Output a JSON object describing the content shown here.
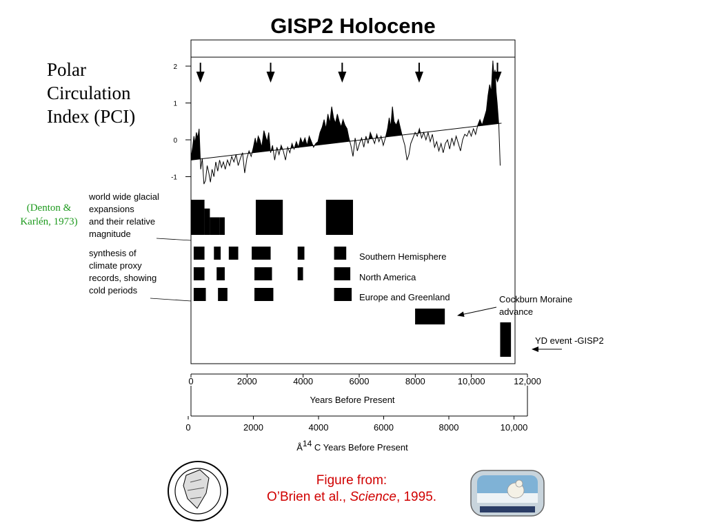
{
  "title": "GISP2 Holocene",
  "pci_label": [
    "Polar",
    "Circulation",
    "Index (PCI)"
  ],
  "denton_citation": [
    "(Denton &",
    "Karlén, 1973)"
  ],
  "glacial_description": [
    "world wide glacial",
    "expansions",
    "and their relative",
    "magnitude"
  ],
  "proxy_description": [
    "synthesis of",
    "climate proxy",
    "records, showing",
    "cold periods"
  ],
  "row_labels": {
    "southern_hemisphere": "Southern Hemisphere",
    "north_america": "North America",
    "europe_greenland": "Europe and Greenland"
  },
  "cockburn_label": [
    "Cockburn Moraine",
    "advance"
  ],
  "yd_label": "YD event -GISP2",
  "credit": {
    "line1": "Figure from:",
    "authors": "O’Brien et al., ",
    "journal": "Science",
    "year": ", 1995."
  },
  "colors": {
    "credit": "#d00000",
    "citation": "#1e9a1e",
    "marks": "#000000"
  },
  "chart_data": {
    "type": "area",
    "title": "GISP2 Holocene",
    "ylabel": "Polar Circulation Index (PCI)",
    "ylim": [
      -1.4,
      2.3
    ],
    "y_ticks": [
      "2",
      "1",
      "0",
      "-1"
    ],
    "xlim": [
      0,
      12000
    ],
    "x_ticks": [
      "0",
      "2000",
      "4000",
      "6000",
      "8000",
      "10,000",
      "12,000"
    ],
    "xlabel": "Years Before Present",
    "x2_ticks": [
      "0",
      "2000",
      "4000",
      "6000",
      "8000",
      "10,000"
    ],
    "x2label_prefix": "Å",
    "x2label_sup": "14",
    "x2label_rest": " C Years Before Present",
    "trend_line": {
      "x": [
        0,
        11500
      ],
      "y": [
        -0.55,
        0.45
      ]
    },
    "pci_series": [
      [
        0,
        -0.5
      ],
      [
        60,
        -0.2
      ],
      [
        110,
        0.1
      ],
      [
        150,
        -0.1
      ],
      [
        200,
        0.2
      ],
      [
        250,
        0.05
      ],
      [
        300,
        0.3
      ],
      [
        360,
        -0.8
      ],
      [
        420,
        -0.5
      ],
      [
        480,
        -1.2
      ],
      [
        540,
        -1.1
      ],
      [
        600,
        -0.7
      ],
      [
        660,
        -0.9
      ],
      [
        720,
        -1.15
      ],
      [
        780,
        -0.8
      ],
      [
        850,
        -1.0
      ],
      [
        920,
        -0.6
      ],
      [
        990,
        -0.85
      ],
      [
        1060,
        -0.55
      ],
      [
        1130,
        -0.75
      ],
      [
        1200,
        -0.6
      ],
      [
        1270,
        -0.8
      ],
      [
        1350,
        -0.55
      ],
      [
        1430,
        -0.7
      ],
      [
        1510,
        -0.45
      ],
      [
        1590,
        -0.6
      ],
      [
        1670,
        -0.4
      ],
      [
        1750,
        -0.7
      ],
      [
        1830,
        -0.5
      ],
      [
        1910,
        -0.35
      ],
      [
        1990,
        -0.9
      ],
      [
        2070,
        -0.5
      ],
      [
        2150,
        -0.3
      ],
      [
        2230,
        -0.45
      ],
      [
        2310,
        -0.2
      ],
      [
        2380,
        0.05
      ],
      [
        2430,
        -0.15
      ],
      [
        2490,
        0.1
      ],
      [
        2550,
        0.0
      ],
      [
        2620,
        -0.2
      ],
      [
        2700,
        0.25
      ],
      [
        2760,
        0.1
      ],
      [
        2820,
        -0.05
      ],
      [
        2880,
        0.2
      ],
      [
        2950,
        -0.35
      ],
      [
        3020,
        -0.15
      ],
      [
        3100,
        -0.55
      ],
      [
        3180,
        -0.2
      ],
      [
        3260,
        -0.4
      ],
      [
        3340,
        -0.15
      ],
      [
        3420,
        -0.3
      ],
      [
        3500,
        -0.55
      ],
      [
        3580,
        -0.2
      ],
      [
        3660,
        -0.35
      ],
      [
        3740,
        -0.1
      ],
      [
        3820,
        -0.25
      ],
      [
        3900,
        -0.05
      ],
      [
        3980,
        -0.2
      ],
      [
        4060,
        0.05
      ],
      [
        4140,
        -0.1
      ],
      [
        4220,
        0.05
      ],
      [
        4300,
        -0.15
      ],
      [
        4380,
        0.1
      ],
      [
        4460,
        -0.05
      ],
      [
        4540,
        -0.2
      ],
      [
        4620,
        -0.1
      ],
      [
        4700,
        -0.05
      ],
      [
        4780,
        0.2
      ],
      [
        4860,
        0.35
      ],
      [
        4930,
        0.55
      ],
      [
        5000,
        0.3
      ],
      [
        5070,
        0.7
      ],
      [
        5140,
        0.45
      ],
      [
        5210,
        0.9
      ],
      [
        5280,
        0.6
      ],
      [
        5350,
        0.45
      ],
      [
        5420,
        0.7
      ],
      [
        5490,
        0.5
      ],
      [
        5560,
        0.35
      ],
      [
        5630,
        0.55
      ],
      [
        5700,
        0.4
      ],
      [
        5780,
        0.3
      ],
      [
        5850,
        0.05
      ],
      [
        5920,
        -0.15
      ],
      [
        6000,
        -0.45
      ],
      [
        6080,
        0.05
      ],
      [
        6160,
        -0.3
      ],
      [
        6240,
        -0.1
      ],
      [
        6320,
        0.05
      ],
      [
        6400,
        -0.2
      ],
      [
        6480,
        0.1
      ],
      [
        6560,
        -0.1
      ],
      [
        6640,
        0.2
      ],
      [
        6720,
        0.05
      ],
      [
        6800,
        -0.1
      ],
      [
        6880,
        0.15
      ],
      [
        6960,
        -0.05
      ],
      [
        7040,
        0.1
      ],
      [
        7120,
        -0.15
      ],
      [
        7200,
        0.05
      ],
      [
        7280,
        0.3
      ],
      [
        7340,
        0.6
      ],
      [
        7400,
        0.35
      ],
      [
        7460,
        0.9
      ],
      [
        7520,
        0.5
      ],
      [
        7600,
        0.4
      ],
      [
        7680,
        0.55
      ],
      [
        7760,
        0.3
      ],
      [
        7840,
        0.05
      ],
      [
        7920,
        -0.15
      ],
      [
        8000,
        -0.55
      ],
      [
        8070,
        -0.4
      ],
      [
        8140,
        -0.1
      ],
      [
        8220,
        0.05
      ],
      [
        8300,
        0.2
      ],
      [
        8380,
        0.1
      ],
      [
        8460,
        0.3
      ],
      [
        8540,
        0.05
      ],
      [
        8620,
        0.2
      ],
      [
        8700,
        0.0
      ],
      [
        8780,
        0.2
      ],
      [
        8860,
        -0.05
      ],
      [
        8940,
        0.15
      ],
      [
        9020,
        -0.2
      ],
      [
        9100,
        -0.05
      ],
      [
        9180,
        -0.3
      ],
      [
        9260,
        -0.1
      ],
      [
        9340,
        -0.35
      ],
      [
        9420,
        -0.1
      ],
      [
        9500,
        0.0
      ],
      [
        9580,
        -0.25
      ],
      [
        9660,
        0.05
      ],
      [
        9740,
        -0.15
      ],
      [
        9820,
        0.1
      ],
      [
        9900,
        -0.1
      ],
      [
        9980,
        -0.3
      ],
      [
        10060,
        0.0
      ],
      [
        10140,
        0.15
      ],
      [
        10220,
        0.1
      ],
      [
        10300,
        0.25
      ],
      [
        10380,
        0.1
      ],
      [
        10460,
        0.3
      ],
      [
        10540,
        0.15
      ],
      [
        10620,
        0.4
      ],
      [
        10700,
        0.55
      ],
      [
        10780,
        0.4
      ],
      [
        10860,
        0.6
      ],
      [
        10940,
        0.8
      ],
      [
        11000,
        1.2
      ],
      [
        11060,
        1.5
      ],
      [
        11120,
        1.3
      ],
      [
        11180,
        2.15
      ],
      [
        11220,
        1.7
      ],
      [
        11260,
        1.9
      ],
      [
        11300,
        1.3
      ],
      [
        11340,
        1.0
      ],
      [
        11400,
        0.4
      ],
      [
        11450,
        -0.7
      ]
    ],
    "event_arrows_years": [
      350,
      2950,
      5600,
      8450,
      11350
    ],
    "glacial_expansions": [
      {
        "start": 0,
        "end": 500,
        "level": 1.0
      },
      {
        "start": 500,
        "end": 700,
        "level": 0.75
      },
      {
        "start": 700,
        "end": 1050,
        "level": 0.5
      },
      {
        "start": 1050,
        "end": 1250,
        "level": 0.5
      },
      {
        "start": 2400,
        "end": 3400,
        "level": 1.0
      },
      {
        "start": 5000,
        "end": 6000,
        "level": 1.0
      }
    ],
    "cold_periods": {
      "southern_hemisphere": [
        [
          100,
          500
        ],
        [
          850,
          1100
        ],
        [
          1400,
          1750
        ],
        [
          2250,
          2950
        ],
        [
          3950,
          4200
        ],
        [
          5300,
          5750
        ]
      ],
      "north_america": [
        [
          100,
          500
        ],
        [
          950,
          1250
        ],
        [
          2350,
          3000
        ],
        [
          3950,
          4150
        ],
        [
          5300,
          5900
        ]
      ],
      "europe_greenland": [
        [
          100,
          550
        ],
        [
          1000,
          1350
        ],
        [
          2350,
          3050
        ],
        [
          5300,
          5950
        ]
      ]
    },
    "cockburn_moraine": [
      8300,
      9400
    ],
    "yd_event": [
      11450,
      11850
    ]
  }
}
